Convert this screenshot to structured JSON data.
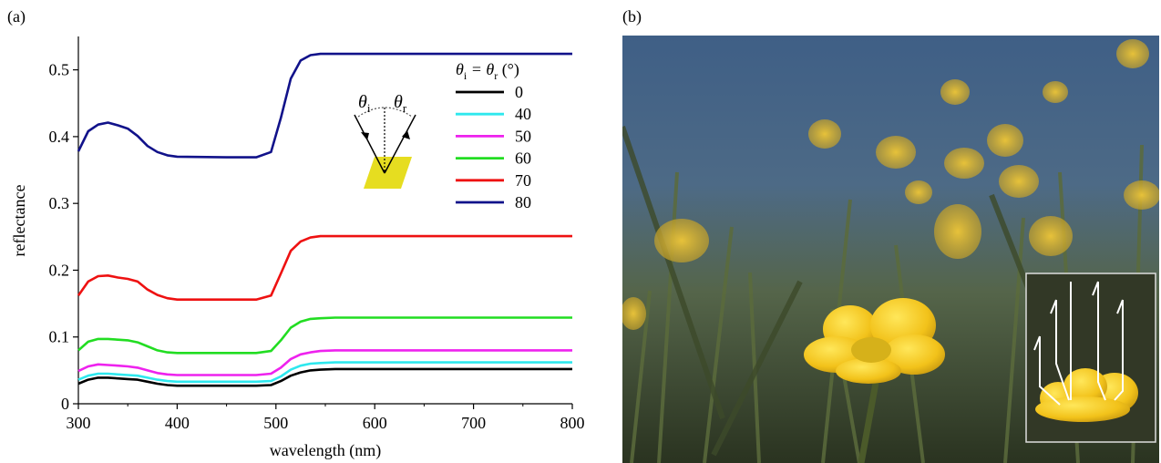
{
  "panels": {
    "a_label": "(a)",
    "b_label": "(b)"
  },
  "chart_data": {
    "type": "line",
    "xlabel": "wavelength (nm)",
    "ylabel": "reflectance",
    "xlim": [
      300,
      800
    ],
    "ylim": [
      0,
      0.55
    ],
    "xticks": [
      "300",
      "400",
      "500",
      "600",
      "700",
      "800"
    ],
    "yticks": [
      "0",
      "0.1",
      "0.2",
      "0.3",
      "0.4",
      "0.5"
    ],
    "grid": false,
    "legend": {
      "title_main": "θ",
      "title_sub1": "i",
      "title_eq": " = θ",
      "title_sub2": "r",
      "title_unit": " (°)",
      "placement": "top-right"
    },
    "inset_diagram": {
      "label_incident": "θ",
      "label_incident_sub": "i",
      "label_reflect": "θ",
      "label_reflect_sub": "r"
    },
    "x": [
      300,
      310,
      320,
      330,
      340,
      350,
      360,
      370,
      380,
      390,
      400,
      450,
      480,
      495,
      505,
      515,
      525,
      535,
      545,
      560,
      600,
      700,
      800
    ],
    "series": [
      {
        "name": "0",
        "color": "#000000",
        "values": [
          0.03,
          0.036,
          0.039,
          0.039,
          0.038,
          0.037,
          0.036,
          0.033,
          0.03,
          0.028,
          0.027,
          0.027,
          0.027,
          0.028,
          0.034,
          0.042,
          0.047,
          0.05,
          0.051,
          0.052,
          0.052,
          0.052,
          0.052
        ]
      },
      {
        "name": "40",
        "color": "#2ee8ee",
        "values": [
          0.036,
          0.042,
          0.045,
          0.045,
          0.044,
          0.043,
          0.042,
          0.039,
          0.036,
          0.034,
          0.033,
          0.033,
          0.033,
          0.034,
          0.041,
          0.051,
          0.057,
          0.06,
          0.061,
          0.062,
          0.062,
          0.062,
          0.062
        ]
      },
      {
        "name": "50",
        "color": "#ee22ee",
        "values": [
          0.049,
          0.056,
          0.059,
          0.058,
          0.057,
          0.056,
          0.054,
          0.05,
          0.046,
          0.044,
          0.043,
          0.043,
          0.043,
          0.045,
          0.054,
          0.067,
          0.074,
          0.077,
          0.079,
          0.08,
          0.08,
          0.08,
          0.08
        ]
      },
      {
        "name": "60",
        "color": "#22dd22",
        "values": [
          0.08,
          0.093,
          0.097,
          0.097,
          0.096,
          0.095,
          0.092,
          0.086,
          0.08,
          0.077,
          0.076,
          0.076,
          0.076,
          0.079,
          0.095,
          0.114,
          0.123,
          0.127,
          0.128,
          0.129,
          0.129,
          0.129,
          0.129
        ]
      },
      {
        "name": "70",
        "color": "#ee1111",
        "values": [
          0.162,
          0.183,
          0.191,
          0.192,
          0.189,
          0.187,
          0.183,
          0.171,
          0.163,
          0.158,
          0.156,
          0.156,
          0.156,
          0.162,
          0.195,
          0.229,
          0.243,
          0.249,
          0.251,
          0.251,
          0.251,
          0.251,
          0.251
        ]
      },
      {
        "name": "80",
        "color": "#11128a",
        "values": [
          0.378,
          0.408,
          0.418,
          0.421,
          0.417,
          0.412,
          0.401,
          0.386,
          0.377,
          0.372,
          0.37,
          0.369,
          0.369,
          0.377,
          0.428,
          0.487,
          0.514,
          0.522,
          0.524,
          0.524,
          0.524,
          0.524,
          0.524
        ]
      }
    ]
  }
}
